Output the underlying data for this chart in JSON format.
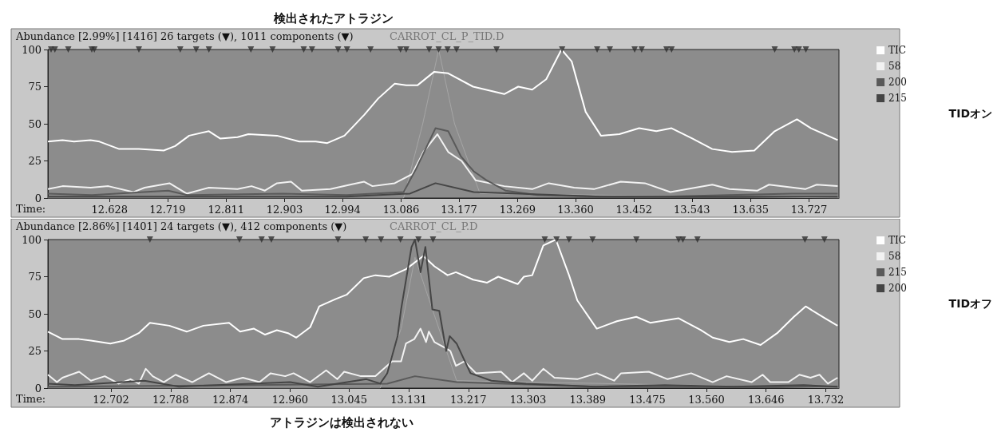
{
  "chart_data": [
    {
      "type": "line",
      "title": "検出されたアトラジン",
      "subtitle": "Abundance [2.99%] [1416] 26 targets (▼), 1011 components (▼)",
      "xlabel": "Time:",
      "xlim": [
        12.531,
        13.774
      ],
      "xticks": [
        12.628,
        12.719,
        12.811,
        12.903,
        12.994,
        13.086,
        13.177,
        13.269,
        {
          "value": 13.36,
          "label": "13.360"
        },
        13.452,
        13.543,
        13.635,
        13.727
      ],
      "ylim": [
        0,
        100
      ],
      "yticks": [
        0,
        25,
        50,
        75,
        100
      ],
      "grid": false,
      "legend": "right",
      "marker": "none",
      "annotations": [
        "CARROT_CL_P_TID.D",
        "TIDオン"
      ],
      "series": [
        {
          "name": "TIC",
          "color": "#ffffff",
          "x": [
            12.531,
            12.554,
            12.572,
            12.598,
            12.612,
            12.643,
            12.674,
            12.713,
            12.731,
            12.753,
            12.784,
            12.802,
            12.829,
            12.846,
            12.891,
            12.926,
            12.952,
            12.97,
            12.997,
            13.028,
            13.05,
            13.076,
            13.094,
            13.112,
            13.138,
            13.16,
            13.199,
            13.248,
            13.27,
            13.292,
            13.314,
            13.338,
            13.354,
            13.376,
            13.4,
            13.429,
            13.46,
            13.487,
            13.511,
            13.544,
            13.575,
            13.606,
            13.641,
            13.673,
            13.708,
            13.73,
            13.772
          ],
          "values": [
            38,
            39,
            38,
            39,
            38,
            33,
            33,
            32,
            35,
            42,
            45,
            40,
            41,
            43,
            42,
            38,
            38,
            37,
            42,
            56,
            67,
            77,
            76,
            76,
            85,
            84,
            75,
            70,
            75,
            73,
            80,
            100,
            92,
            58,
            42,
            43,
            47,
            45,
            47,
            40,
            33,
            31,
            32,
            45,
            53,
            47,
            39
          ]
        },
        {
          "name": "58",
          "color": "#f2f2f2",
          "x": [
            12.531,
            12.554,
            12.598,
            12.626,
            12.665,
            12.683,
            12.722,
            12.749,
            12.784,
            12.829,
            12.851,
            12.872,
            12.891,
            12.913,
            12.93,
            12.975,
            13.006,
            13.028,
            13.041,
            13.076,
            13.103,
            13.121,
            13.143,
            13.16,
            13.181,
            13.203,
            13.248,
            13.292,
            13.318,
            13.358,
            13.389,
            13.431,
            13.469,
            13.509,
            13.575,
            13.602,
            13.646,
            13.664,
            13.721,
            13.739,
            13.772
          ],
          "values": [
            6,
            8,
            7,
            8,
            4,
            7,
            10,
            3,
            7,
            6,
            8,
            5,
            10,
            11,
            5,
            6,
            9,
            11,
            8,
            10,
            16,
            31,
            43,
            31,
            25,
            12,
            8,
            6,
            10,
            7,
            6,
            11,
            10,
            4,
            9,
            6,
            5,
            9,
            6,
            9,
            8
          ]
        },
        {
          "name": "200",
          "color": "#5a5a5a",
          "x": [
            12.531,
            12.6,
            12.72,
            12.75,
            12.9,
            13.0,
            13.09,
            13.11,
            13.14,
            13.16,
            13.18,
            13.2,
            13.22,
            13.25,
            13.3,
            13.4,
            13.5,
            13.6,
            13.7,
            13.772
          ],
          "values": [
            3,
            2,
            5,
            2,
            3,
            2,
            4,
            20,
            47,
            45,
            28,
            18,
            12,
            5,
            2,
            1,
            1,
            2,
            3,
            3
          ]
        },
        {
          "name": "215",
          "color": "#454545",
          "x": [
            12.531,
            12.8,
            13.0,
            13.1,
            13.14,
            13.2,
            13.4,
            13.6,
            13.772
          ],
          "values": [
            1,
            1,
            1,
            3,
            10,
            4,
            1,
            1,
            1
          ]
        },
        {
          "color": "#a6a6a6",
          "x": [
            12.531,
            13.09,
            13.12,
            13.145,
            13.17,
            13.21,
            13.774
          ],
          "values": [
            0,
            0,
            50,
            100,
            50,
            3,
            0
          ]
        },
        {
          "type": "scatter",
          "marker": "triangle",
          "color": "#303030",
          "x": [
            12.536,
            12.542,
            12.563,
            12.6,
            12.604,
            12.674,
            12.739,
            12.764,
            12.784,
            12.85,
            12.884,
            12.933,
            12.946,
            12.987,
            13.001,
            13.038,
            13.085,
            13.094,
            13.13,
            13.145,
            13.159,
            13.173,
            13.236,
            13.339,
            13.394,
            13.414,
            13.453,
            13.464,
            13.503,
            13.511,
            13.673,
            13.704,
            13.711,
            13.722
          ],
          "values": [
            100,
            100,
            100,
            100,
            100,
            100,
            100,
            100,
            100,
            100,
            100,
            100,
            100,
            100,
            100,
            100,
            100,
            100,
            100,
            100,
            100,
            100,
            100,
            100,
            100,
            100,
            100,
            100,
            100,
            100,
            100,
            100,
            100,
            100
          ]
        }
      ]
    },
    {
      "type": "line",
      "subtitle": "Abundance [2.86%] [1401] 24 targets (▼), 412 components (▼)",
      "xlabel": "Time:",
      "xlim": [
        12.611,
        13.751
      ],
      "xticks": [
        12.702,
        12.788,
        12.874,
        {
          "value": 12.96,
          "label": "12.960"
        },
        13.045,
        13.131,
        13.217,
        13.303,
        13.389,
        13.475,
        {
          "value": 13.56,
          "label": "13.560"
        },
        13.646,
        13.732
      ],
      "ylim": [
        0,
        100
      ],
      "yticks": [
        0,
        25,
        50,
        75,
        100
      ],
      "grid": false,
      "legend": "right",
      "marker": "none",
      "annotations": [
        "CARROT_CL_P.D",
        "TIDオフ",
        "アトラジンは検出されない"
      ],
      "series": [
        {
          "name": "TIC",
          "color": "#ffffff",
          "x": [
            12.611,
            12.632,
            12.656,
            12.673,
            12.701,
            12.721,
            12.742,
            12.758,
            12.786,
            12.811,
            12.835,
            12.872,
            12.888,
            12.908,
            12.924,
            12.941,
            12.957,
            12.969,
            12.989,
            13.002,
            13.026,
            13.042,
            13.066,
            13.083,
            13.103,
            13.127,
            13.152,
            13.168,
            13.187,
            13.199,
            13.224,
            13.244,
            13.26,
            13.288,
            13.297,
            13.309,
            13.325,
            13.343,
            13.362,
            13.374,
            13.402,
            13.431,
            13.459,
            13.479,
            13.52,
            13.552,
            13.569,
            13.593,
            13.613,
            13.638,
            13.662,
            13.686,
            13.703,
            13.731,
            13.749
          ],
          "values": [
            38,
            33,
            33,
            32,
            30,
            32,
            37,
            44,
            42,
            38,
            42,
            44,
            38,
            40,
            36,
            39,
            37,
            34,
            41,
            55,
            60,
            63,
            74,
            76,
            75,
            80,
            89,
            82,
            76,
            78,
            73,
            71,
            75,
            70,
            75,
            76,
            96,
            100,
            76,
            59,
            40,
            45,
            48,
            44,
            47,
            39,
            34,
            31,
            33,
            29,
            37,
            48,
            55,
            47,
            42
          ]
        },
        {
          "name": "58",
          "color": "#f2f2f2",
          "x": [
            12.611,
            12.624,
            12.632,
            12.656,
            12.673,
            12.693,
            12.713,
            12.73,
            12.742,
            12.752,
            12.762,
            12.778,
            12.795,
            12.819,
            12.843,
            12.868,
            12.892,
            12.916,
            12.932,
            12.953,
            12.965,
            12.989,
            13.012,
            13.028,
            13.038,
            13.062,
            13.083,
            13.107,
            13.12,
            13.127,
            13.139,
            13.148,
            13.156,
            13.16,
            13.168,
            13.184,
            13.191,
            13.199,
            13.211,
            13.228,
            13.264,
            13.28,
            13.297,
            13.309,
            13.325,
            13.341,
            13.374,
            13.402,
            13.427,
            13.437,
            13.477,
            13.504,
            13.538,
            13.569,
            13.589,
            13.625,
            13.641,
            13.652,
            13.678,
            13.694,
            13.71,
            13.723,
            13.735,
            13.749
          ],
          "values": [
            9,
            4,
            7,
            11,
            5,
            8,
            3,
            6,
            3,
            13,
            8,
            4,
            9,
            4,
            10,
            4,
            7,
            4,
            10,
            8,
            10,
            4,
            12,
            6,
            11,
            8,
            8,
            18,
            18,
            30,
            33,
            40,
            31,
            38,
            31,
            27,
            25,
            15,
            18,
            10,
            11,
            4,
            10,
            5,
            13,
            7,
            6,
            10,
            5,
            10,
            11,
            6,
            10,
            4,
            8,
            4,
            9,
            4,
            4,
            9,
            7,
            9,
            3,
            7
          ]
        },
        {
          "name": "215",
          "color": "#5a5a5a",
          "x": [
            12.611,
            12.9,
            13.1,
            13.14,
            13.2,
            13.4,
            13.749
          ],
          "values": [
            1,
            2,
            3,
            8,
            4,
            1,
            1
          ]
        },
        {
          "name": "200",
          "color": "#454545",
          "x": [
            12.611,
            12.65,
            12.75,
            12.8,
            12.96,
            13.0,
            13.07,
            13.09,
            13.1,
            13.115,
            13.12,
            13.135,
            13.14,
            13.148,
            13.155,
            13.165,
            13.175,
            13.185,
            13.19,
            13.2,
            13.21,
            13.22,
            13.25,
            13.3,
            13.4,
            13.5,
            13.6,
            13.7,
            13.749
          ],
          "values": [
            3,
            2,
            5,
            1,
            4,
            1,
            6,
            3,
            10,
            35,
            53,
            95,
            100,
            78,
            95,
            53,
            52,
            25,
            35,
            30,
            20,
            10,
            5,
            3,
            1,
            2,
            1,
            2,
            1
          ]
        },
        {
          "color": "#a6a6a6",
          "x": [
            12.611,
            13.09,
            13.12,
            13.14,
            13.16,
            13.2,
            13.751
          ],
          "values": [
            0,
            0,
            40,
            88,
            60,
            5,
            0
          ]
        },
        {
          "type": "scatter",
          "marker": "triangle",
          "color": "#303030",
          "x": [
            12.758,
            12.887,
            12.919,
            12.933,
            13.029,
            13.069,
            13.091,
            13.119,
            13.145,
            13.166,
            13.327,
            13.344,
            13.362,
            13.396,
            13.459,
            13.52,
            13.526,
            13.547,
            13.702,
            13.73
          ],
          "values": [
            100,
            100,
            100,
            100,
            100,
            100,
            100,
            100,
            100,
            100,
            100,
            100,
            100,
            100,
            100,
            100,
            100,
            100,
            100,
            100
          ]
        }
      ]
    }
  ]
}
